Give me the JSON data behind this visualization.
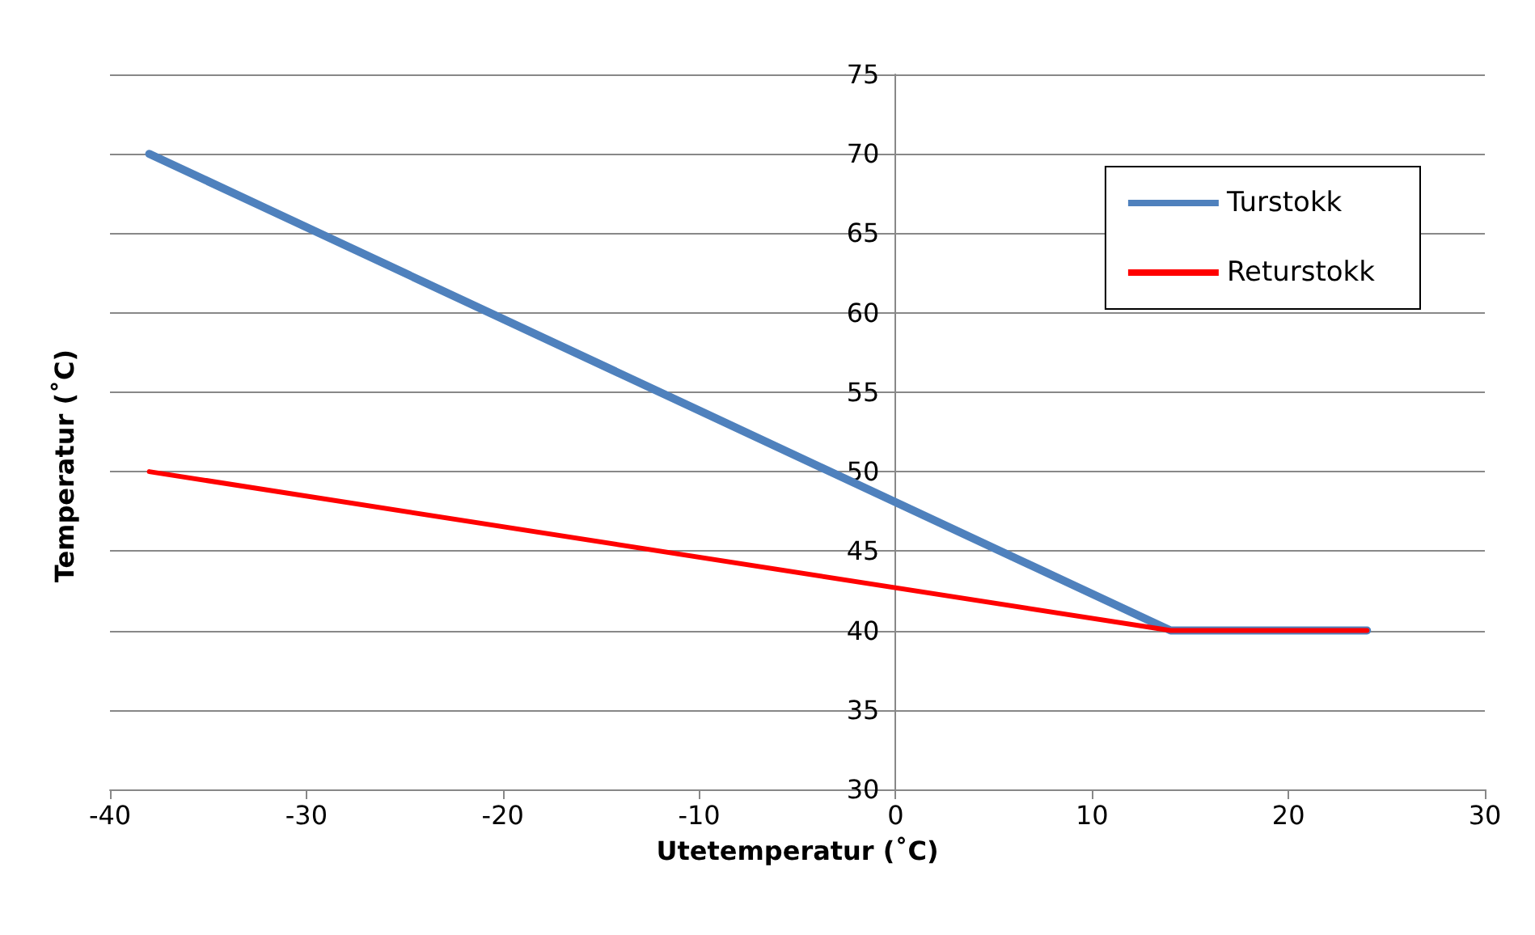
{
  "chart_data": {
    "type": "line",
    "xlabel": "Utetemperatur (˚C)",
    "ylabel": "Temperatur (˚C)",
    "xlim": [
      -40,
      30
    ],
    "xticks": [
      -40,
      -30,
      -20,
      -10,
      0,
      10,
      20,
      30
    ],
    "ylim": [
      30,
      75
    ],
    "yticks": [
      30,
      35,
      40,
      45,
      50,
      55,
      60,
      65,
      70,
      75
    ],
    "grid": "y",
    "legend": "top right",
    "marker": "none",
    "line_style": "solid",
    "series": [
      {
        "name": "Turstokk",
        "color": "#4f81bd",
        "x": [
          -38,
          14,
          24
        ],
        "values": [
          70,
          40,
          40
        ]
      },
      {
        "name": "Returstokk",
        "color": "#ff0000",
        "x": [
          -38,
          14,
          24
        ],
        "values": [
          50,
          40,
          40
        ]
      }
    ]
  }
}
